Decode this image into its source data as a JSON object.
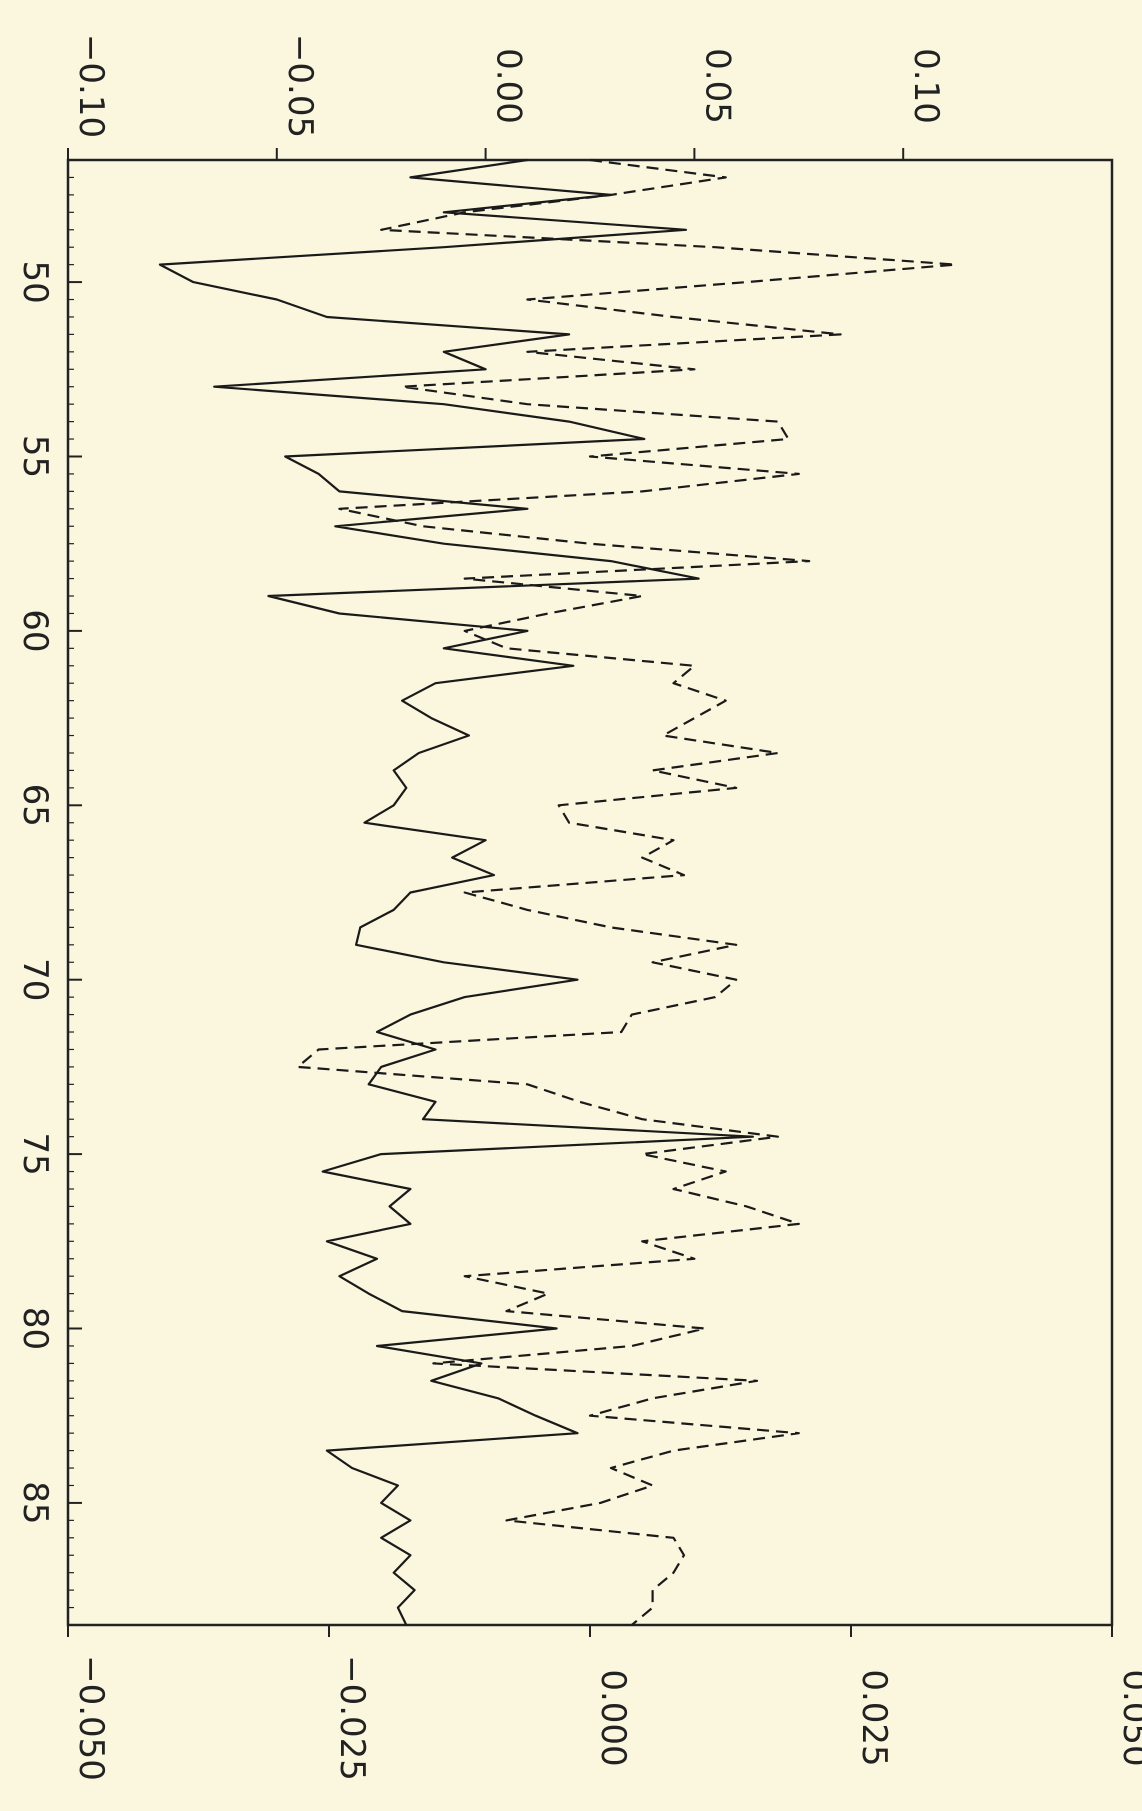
{
  "chart_data": {
    "type": "line",
    "title": "",
    "xlabel": "",
    "x_ticks": [
      50,
      55,
      60,
      65,
      70,
      75,
      80,
      85
    ],
    "xlim": [
      46.5,
      88.5
    ],
    "y_axis_left": {
      "label": "",
      "ylim": [
        -0.1,
        0.15
      ],
      "ticks": [
        "-0.10",
        "-0.05",
        "0.00",
        "0.05",
        "0.10"
      ]
    },
    "y_axis_right": {
      "label": "",
      "ylim": [
        -0.05,
        0.05
      ],
      "ticks": [
        "-0.050",
        "-0.025",
        "0.000",
        "0.025",
        "0.050"
      ]
    },
    "series": [
      {
        "style": "solid",
        "axis": "left",
        "x": [
          46.5,
          47,
          47.5,
          48,
          48.5,
          49,
          49.5,
          50,
          50.5,
          51,
          51.5,
          52,
          52.5,
          53,
          53.5,
          54,
          54.5,
          55,
          55.5,
          56,
          56.5,
          57,
          57.5,
          58,
          58.5,
          59,
          59.5,
          60,
          60.5,
          61,
          61.5,
          62,
          62.5,
          63,
          63.5,
          64,
          64.5,
          65,
          65.5,
          66,
          66.5,
          67,
          67.5,
          68,
          68.5,
          69,
          69.5,
          70,
          70.5,
          71,
          71.5,
          72,
          72.5,
          73,
          73.5,
          74,
          74.5,
          75,
          75.5,
          76,
          76.5,
          77,
          77.5,
          78,
          78.5,
          79,
          79.5,
          80,
          80.5,
          81,
          81.5,
          82,
          82.5,
          83,
          83.5,
          84,
          84.5,
          85,
          85.5,
          86,
          86.5,
          87,
          87.5,
          88,
          88.5
        ],
        "y": [
          0.01,
          -0.018,
          0.03,
          -0.01,
          0.048,
          -0.01,
          -0.078,
          -0.07,
          -0.05,
          -0.038,
          0.02,
          -0.01,
          0.0,
          -0.065,
          -0.01,
          0.02,
          0.038,
          -0.048,
          -0.04,
          -0.035,
          0.01,
          -0.036,
          -0.01,
          0.03,
          0.051,
          -0.052,
          -0.035,
          0.01,
          -0.01,
          0.021,
          -0.012,
          -0.02,
          -0.013,
          -0.004,
          -0.016,
          -0.022,
          -0.019,
          -0.022,
          -0.029,
          0.0,
          -0.008,
          0.002,
          -0.018,
          -0.022,
          -0.03,
          -0.031,
          -0.01,
          0.022,
          -0.005,
          -0.018,
          -0.026,
          -0.012,
          -0.025,
          -0.028,
          -0.012,
          -0.015,
          0.064,
          -0.025,
          -0.039,
          -0.018,
          -0.023,
          -0.018,
          -0.038,
          -0.026,
          -0.035,
          -0.028,
          -0.02,
          0.017,
          -0.026,
          -0.001,
          -0.013,
          0.003,
          0.012,
          0.022,
          -0.038,
          -0.032,
          -0.021,
          -0.025,
          -0.018,
          -0.025,
          -0.018,
          -0.022,
          -0.017,
          -0.021,
          -0.019
        ]
      },
      {
        "style": "dashed",
        "axis": "right",
        "x": [
          46.5,
          47,
          47.5,
          48,
          48.5,
          49,
          49.5,
          50,
          50.5,
          51,
          51.5,
          52,
          52.5,
          53,
          53.5,
          54,
          54.5,
          55,
          55.5,
          56,
          56.5,
          57,
          57.5,
          58,
          58.5,
          59,
          59.5,
          60,
          60.5,
          61,
          61.5,
          62,
          62.5,
          63,
          63.5,
          64,
          64.5,
          65,
          65.5,
          66,
          66.5,
          67,
          67.5,
          68,
          68.5,
          69,
          69.5,
          70,
          70.5,
          71,
          71.5,
          72,
          72.5,
          73,
          73.5,
          74,
          74.5,
          75,
          75.5,
          76,
          76.5,
          77,
          77.5,
          78,
          78.5,
          79,
          79.5,
          80,
          80.5,
          81,
          81.5,
          82,
          82.5,
          83,
          83.5,
          84,
          84.5,
          85,
          85.5,
          86,
          86.5,
          87,
          87.5,
          88,
          88.5
        ],
        "y": [
          0.0,
          0.013,
          0.002,
          -0.012,
          -0.02,
          0.012,
          0.035,
          0.015,
          -0.006,
          0.008,
          0.024,
          -0.006,
          0.01,
          -0.018,
          -0.006,
          0.018,
          0.019,
          0.0,
          0.02,
          0.005,
          -0.024,
          -0.016,
          0.0,
          0.021,
          -0.012,
          0.005,
          -0.004,
          -0.012,
          -0.008,
          0.01,
          0.008,
          0.013,
          0.01,
          0.007,
          0.018,
          0.006,
          0.014,
          -0.003,
          -0.002,
          0.008,
          0.005,
          0.009,
          -0.012,
          -0.006,
          0.002,
          0.014,
          0.006,
          0.014,
          0.012,
          0.004,
          0.003,
          -0.026,
          -0.028,
          -0.006,
          -0.001,
          0.005,
          0.018,
          0.005,
          0.013,
          0.008,
          0.015,
          0.02,
          0.005,
          0.01,
          -0.012,
          -0.004,
          -0.008,
          0.011,
          0.004,
          -0.015,
          0.016,
          0.006,
          0.0,
          0.02,
          0.008,
          0.002,
          0.006,
          0.001,
          -0.008,
          0.008,
          0.009,
          0.008,
          0.006,
          0.006,
          0.004
        ]
      }
    ]
  }
}
